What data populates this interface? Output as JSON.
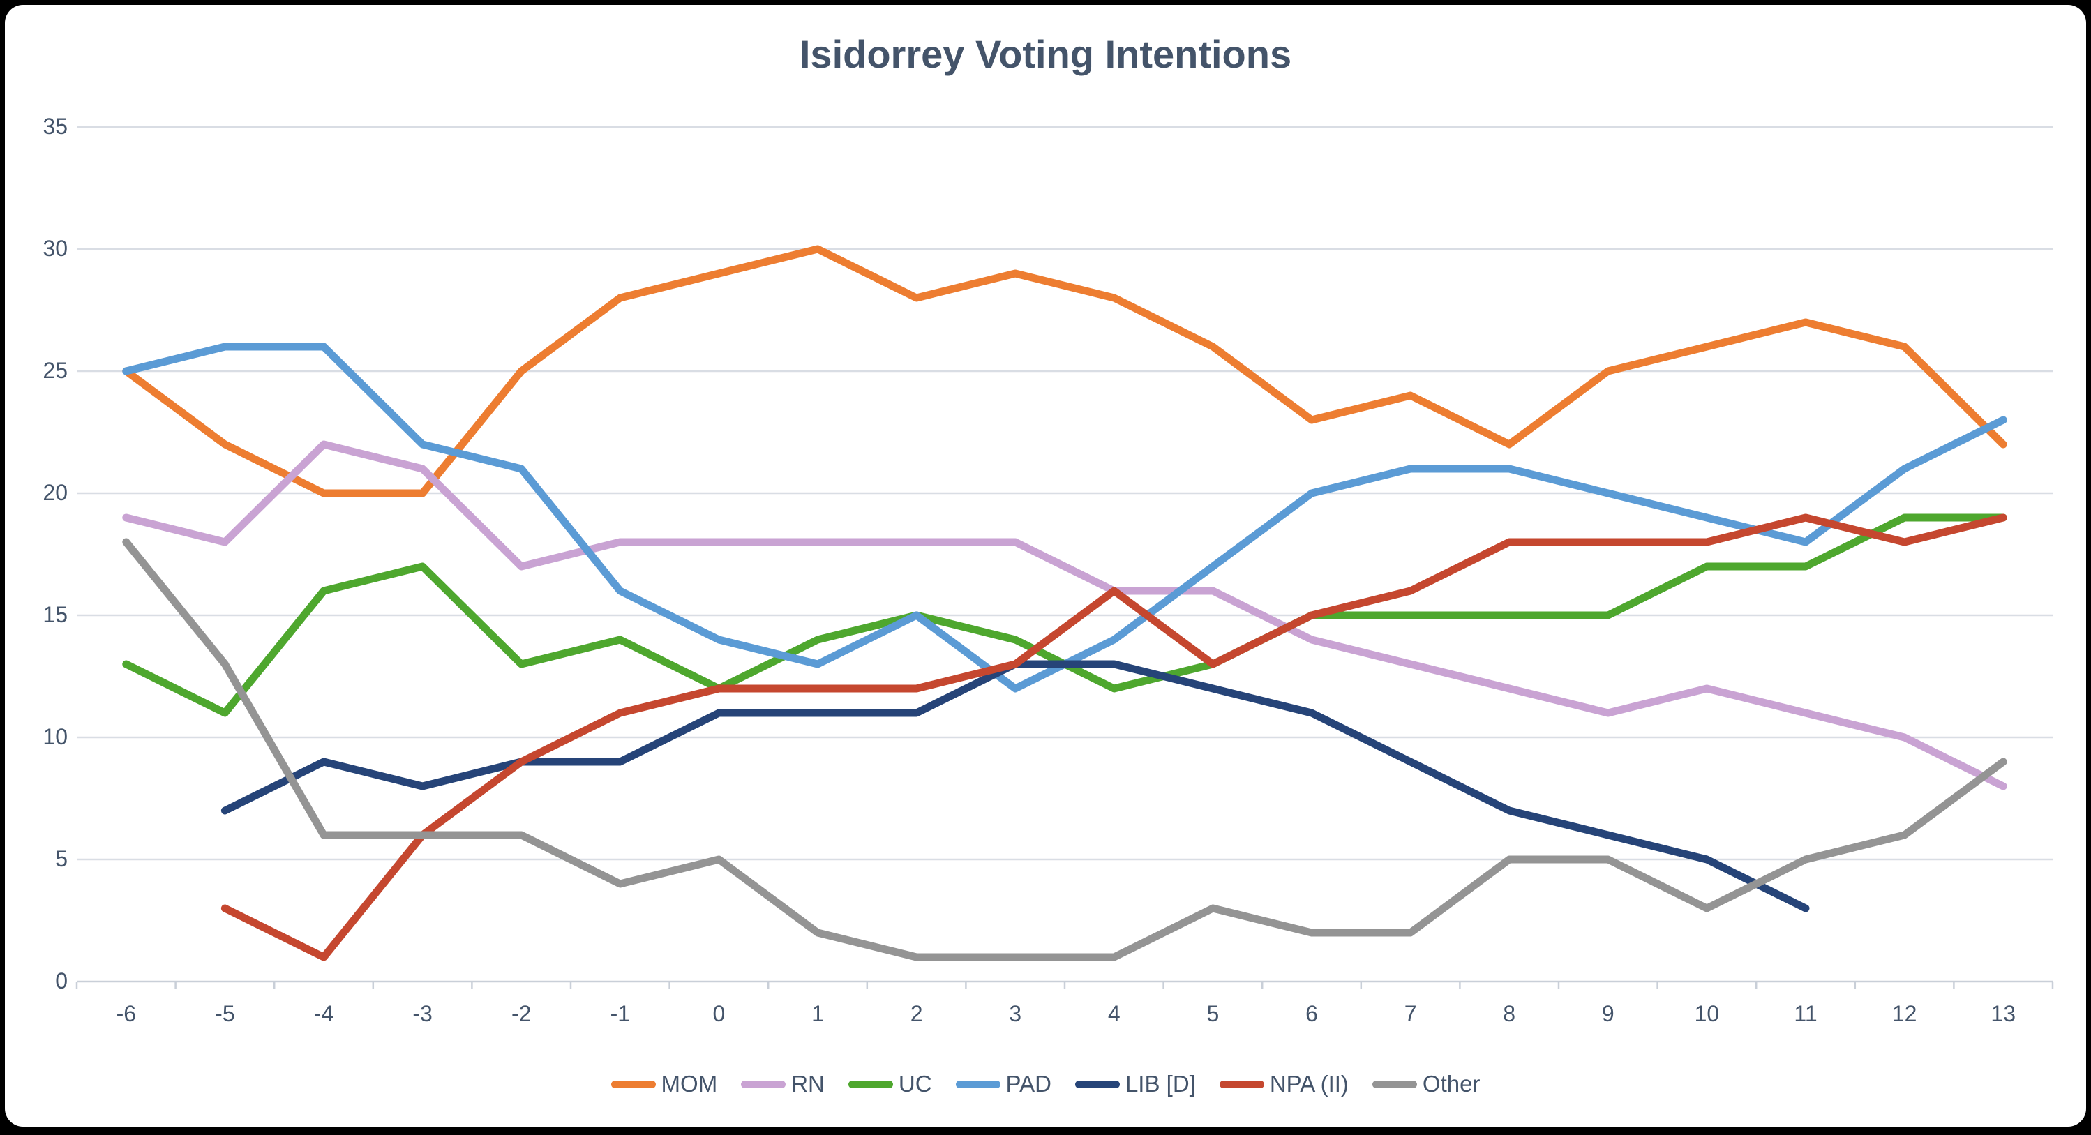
{
  "chart_data": {
    "type": "line",
    "title": "Isidorrey Voting Intentions",
    "xlabel": "",
    "ylabel": "",
    "x_tick_labels": [
      "-6",
      "-5",
      "-4",
      "-3",
      "-2",
      "-1",
      "0",
      "1",
      "2",
      "3",
      "4",
      "5",
      "6",
      "7",
      "8",
      "9",
      "10",
      "11",
      "12",
      "13"
    ],
    "y_ticks": [
      0,
      5,
      10,
      15,
      20,
      25,
      30,
      35
    ],
    "ylim": [
      0,
      35
    ],
    "grid": "horizontal-only",
    "legend_position": "bottom",
    "series": [
      {
        "name": "MOM",
        "color": "#ED7D31",
        "values": [
          25,
          22,
          20,
          20,
          25,
          28,
          29,
          30,
          28,
          29,
          28,
          26,
          23,
          24,
          22,
          25,
          26,
          27,
          26,
          22
        ]
      },
      {
        "name": "RN",
        "color": "#C9A3D3",
        "values": [
          19,
          18,
          22,
          21,
          17,
          18,
          18,
          18,
          18,
          18,
          16,
          16,
          14,
          13,
          12,
          11,
          12,
          11,
          10,
          8
        ]
      },
      {
        "name": "UC",
        "color": "#4EA72E",
        "values": [
          13,
          11,
          16,
          17,
          13,
          14,
          12,
          14,
          15,
          14,
          12,
          13,
          15,
          15,
          15,
          15,
          17,
          17,
          19,
          19
        ]
      },
      {
        "name": "PAD",
        "color": "#5B9BD5",
        "values": [
          25,
          26,
          26,
          22,
          21,
          16,
          14,
          13,
          15,
          12,
          14,
          17,
          20,
          21,
          21,
          20,
          19,
          18,
          21,
          23
        ]
      },
      {
        "name": "LIB [D]",
        "color": "#264478",
        "values": [
          null,
          7,
          9,
          8,
          9,
          9,
          11,
          11,
          11,
          13,
          13,
          12,
          11,
          9,
          7,
          6,
          5,
          3,
          null,
          null
        ]
      },
      {
        "name": "NPA (II)",
        "color": "#C5472F",
        "values": [
          null,
          3,
          1,
          6,
          9,
          11,
          12,
          12,
          12,
          13,
          16,
          13,
          15,
          16,
          18,
          18,
          18,
          19,
          18,
          19
        ]
      },
      {
        "name": "Other",
        "color": "#949494",
        "values": [
          18,
          13,
          6,
          6,
          6,
          4,
          5,
          2,
          1,
          1,
          1,
          3,
          2,
          2,
          5,
          5,
          3,
          5,
          6,
          9
        ]
      }
    ],
    "style": {
      "title_color": "#44546A",
      "axis_label_color": "#44546A",
      "gridline_color": "#D9DDE4",
      "axis_line_color": "#C9CFD8",
      "background": "#FFFFFF",
      "frame_color": "#000000",
      "line_width": 11
    }
  }
}
